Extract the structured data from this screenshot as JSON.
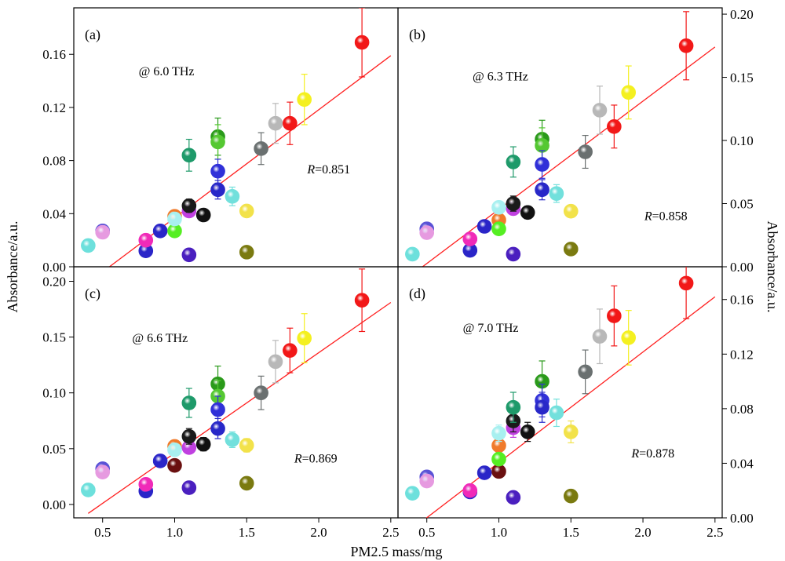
{
  "figure": {
    "xlabel": "PM2.5 mass/mg",
    "ylabel_left": "Absorbance/a.u.",
    "ylabel_right": "Absorbance/a.u."
  },
  "chart_data": [
    {
      "type": "scatter",
      "panel": "(a)",
      "frequency_label": "@ 6.0 THz",
      "r_label": "R",
      "r_value": "=0.851",
      "xlim": [
        0.3,
        2.55
      ],
      "ylim": [
        0,
        0.195
      ],
      "yticks": [
        0.0,
        0.04,
        0.08,
        0.12,
        0.16
      ],
      "ytick_labels": [
        "0.00",
        "0.04",
        "0.08",
        "0.12",
        "0.16"
      ],
      "fit_line": {
        "color": "#ff2020",
        "x": [
          0.4,
          2.5
        ],
        "y": [
          -0.012,
          0.159
        ]
      },
      "points": [
        {
          "x": 0.4,
          "y": 0.016,
          "err": 0.002,
          "color": "#6de0dc"
        },
        {
          "x": 0.5,
          "y": 0.027,
          "err": 0.003,
          "color": "#5a52d6"
        },
        {
          "x": 0.5,
          "y": 0.026,
          "err": 0.003,
          "color": "#e69ae0"
        },
        {
          "x": 0.8,
          "y": 0.012,
          "err": 0.002,
          "color": "#2a25c8"
        },
        {
          "x": 0.8,
          "y": 0.02,
          "err": 0.003,
          "color": "#f02ab8"
        },
        {
          "x": 0.9,
          "y": 0.027,
          "err": 0.003,
          "color": "#2a25c8"
        },
        {
          "x": 1.0,
          "y": 0.038,
          "err": 0.004,
          "color": "#f07a2a"
        },
        {
          "x": 1.0,
          "y": 0.027,
          "err": 0.003,
          "color": "#55ee22"
        },
        {
          "x": 1.0,
          "y": 0.036,
          "err": 0.004,
          "color": "#a8f0f0"
        },
        {
          "x": 1.1,
          "y": 0.042,
          "err": 0.004,
          "color": "#c040e0"
        },
        {
          "x": 1.1,
          "y": 0.046,
          "err": 0.005,
          "color": "#1a1a1a"
        },
        {
          "x": 1.1,
          "y": 0.009,
          "err": 0.002,
          "color": "#4a1fbf"
        },
        {
          "x": 1.1,
          "y": 0.084,
          "err": 0.012,
          "color": "#1e9a6a"
        },
        {
          "x": 1.2,
          "y": 0.039,
          "err": 0.004,
          "color": "#111111"
        },
        {
          "x": 1.3,
          "y": 0.098,
          "err": 0.014,
          "color": "#2a9a1a"
        },
        {
          "x": 1.3,
          "y": 0.094,
          "err": 0.013,
          "color": "#55c832"
        },
        {
          "x": 1.3,
          "y": 0.072,
          "err": 0.009,
          "color": "#3030d8"
        },
        {
          "x": 1.3,
          "y": 0.058,
          "err": 0.007,
          "color": "#2828c8"
        },
        {
          "x": 1.4,
          "y": 0.053,
          "err": 0.007,
          "color": "#72e0dc"
        },
        {
          "x": 1.5,
          "y": 0.042,
          "err": 0.004,
          "color": "#f2e24a"
        },
        {
          "x": 1.5,
          "y": 0.011,
          "err": 0.002,
          "color": "#7a7a10"
        },
        {
          "x": 1.6,
          "y": 0.089,
          "err": 0.012,
          "color": "#6a7070"
        },
        {
          "x": 1.7,
          "y": 0.108,
          "err": 0.015,
          "color": "#b8b8b8"
        },
        {
          "x": 1.8,
          "y": 0.108,
          "err": 0.016,
          "color": "#f21818"
        },
        {
          "x": 1.9,
          "y": 0.126,
          "err": 0.019,
          "color": "#f4f020"
        },
        {
          "x": 2.3,
          "y": 0.169,
          "err": 0.026,
          "color": "#f21818"
        }
      ]
    },
    {
      "type": "scatter",
      "panel": "(b)",
      "frequency_label": "@ 6.3 THz",
      "r_label": "R",
      "r_value": "=0.858",
      "xlim": [
        0.3,
        2.55
      ],
      "ylim": [
        0,
        0.205
      ],
      "yticks": [
        0.0,
        0.05,
        0.1,
        0.15,
        0.2
      ],
      "ytick_labels": [
        "0.00",
        "0.05",
        "0.10",
        "0.15",
        "0.20"
      ],
      "fit_line": {
        "color": "#ff2020",
        "x": [
          0.4,
          2.5
        ],
        "y": [
          -0.006,
          0.174
        ]
      },
      "points": [
        {
          "x": 0.4,
          "y": 0.01,
          "err": 0.002,
          "color": "#6de0dc"
        },
        {
          "x": 0.5,
          "y": 0.03,
          "err": 0.003,
          "color": "#5a52d6"
        },
        {
          "x": 0.5,
          "y": 0.027,
          "err": 0.003,
          "color": "#e69ae0"
        },
        {
          "x": 0.8,
          "y": 0.013,
          "err": 0.002,
          "color": "#2a25c8"
        },
        {
          "x": 0.8,
          "y": 0.022,
          "err": 0.003,
          "color": "#f02ab8"
        },
        {
          "x": 0.9,
          "y": 0.032,
          "err": 0.003,
          "color": "#2a25c8"
        },
        {
          "x": 1.0,
          "y": 0.037,
          "err": 0.004,
          "color": "#f07a2a"
        },
        {
          "x": 1.0,
          "y": 0.03,
          "err": 0.003,
          "color": "#55ee22"
        },
        {
          "x": 1.0,
          "y": 0.047,
          "err": 0.005,
          "color": "#a8f0f0"
        },
        {
          "x": 1.1,
          "y": 0.046,
          "err": 0.005,
          "color": "#c040e0"
        },
        {
          "x": 1.1,
          "y": 0.05,
          "err": 0.006,
          "color": "#1a1a1a"
        },
        {
          "x": 1.1,
          "y": 0.01,
          "err": 0.002,
          "color": "#4a1fbf"
        },
        {
          "x": 1.1,
          "y": 0.083,
          "err": 0.012,
          "color": "#1e9a6a"
        },
        {
          "x": 1.2,
          "y": 0.043,
          "err": 0.005,
          "color": "#111111"
        },
        {
          "x": 1.3,
          "y": 0.101,
          "err": 0.015,
          "color": "#2a9a1a"
        },
        {
          "x": 1.3,
          "y": 0.096,
          "err": 0.014,
          "color": "#55c832"
        },
        {
          "x": 1.3,
          "y": 0.081,
          "err": 0.011,
          "color": "#3030d8"
        },
        {
          "x": 1.3,
          "y": 0.061,
          "err": 0.008,
          "color": "#2828c8"
        },
        {
          "x": 1.4,
          "y": 0.058,
          "err": 0.007,
          "color": "#72e0dc"
        },
        {
          "x": 1.5,
          "y": 0.044,
          "err": 0.004,
          "color": "#f2e24a"
        },
        {
          "x": 1.5,
          "y": 0.014,
          "err": 0.002,
          "color": "#7a7a10"
        },
        {
          "x": 1.6,
          "y": 0.091,
          "err": 0.013,
          "color": "#6a7070"
        },
        {
          "x": 1.7,
          "y": 0.124,
          "err": 0.019,
          "color": "#b8b8b8"
        },
        {
          "x": 1.8,
          "y": 0.111,
          "err": 0.017,
          "color": "#f21818"
        },
        {
          "x": 1.9,
          "y": 0.138,
          "err": 0.021,
          "color": "#f4f020"
        },
        {
          "x": 2.3,
          "y": 0.175,
          "err": 0.027,
          "color": "#f21818"
        }
      ]
    },
    {
      "type": "scatter",
      "panel": "(c)",
      "frequency_label": "@ 6.6 THz",
      "r_label": "R",
      "r_value": "=0.869",
      "xlim": [
        0.3,
        2.55
      ],
      "ylim": [
        -0.012,
        0.213
      ],
      "yticks": [
        0.0,
        0.05,
        0.1,
        0.15,
        0.2
      ],
      "ytick_labels": [
        "0.00",
        "0.05",
        "0.10",
        "0.15",
        "0.20"
      ],
      "fit_line": {
        "color": "#ff2020",
        "x": [
          0.4,
          2.5
        ],
        "y": [
          -0.008,
          0.181
        ]
      },
      "points": [
        {
          "x": 0.4,
          "y": 0.013,
          "err": 0.002,
          "color": "#6de0dc"
        },
        {
          "x": 0.5,
          "y": 0.032,
          "err": 0.003,
          "color": "#5a52d6"
        },
        {
          "x": 0.5,
          "y": 0.029,
          "err": 0.003,
          "color": "#e69ae0"
        },
        {
          "x": 0.8,
          "y": 0.012,
          "err": 0.002,
          "color": "#2a25c8"
        },
        {
          "x": 0.8,
          "y": 0.018,
          "err": 0.003,
          "color": "#f02ab8"
        },
        {
          "x": 0.9,
          "y": 0.039,
          "err": 0.004,
          "color": "#2a25c8"
        },
        {
          "x": 1.0,
          "y": 0.052,
          "err": 0.005,
          "color": "#f07a2a"
        },
        {
          "x": 1.0,
          "y": 0.035,
          "err": 0.004,
          "color": "#6a1010"
        },
        {
          "x": 1.0,
          "y": 0.049,
          "err": 0.005,
          "color": "#a8f0f0"
        },
        {
          "x": 1.1,
          "y": 0.051,
          "err": 0.005,
          "color": "#c040e0"
        },
        {
          "x": 1.1,
          "y": 0.061,
          "err": 0.007,
          "color": "#1a1a1a"
        },
        {
          "x": 1.1,
          "y": 0.015,
          "err": 0.002,
          "color": "#4a1fbf"
        },
        {
          "x": 1.1,
          "y": 0.091,
          "err": 0.013,
          "color": "#1e9a6a"
        },
        {
          "x": 1.2,
          "y": 0.054,
          "err": 0.006,
          "color": "#111111"
        },
        {
          "x": 1.3,
          "y": 0.108,
          "err": 0.016,
          "color": "#2a9a1a"
        },
        {
          "x": 1.3,
          "y": 0.097,
          "err": 0.014,
          "color": "#55c832"
        },
        {
          "x": 1.3,
          "y": 0.085,
          "err": 0.012,
          "color": "#3030d8"
        },
        {
          "x": 1.3,
          "y": 0.068,
          "err": 0.009,
          "color": "#2828c8"
        },
        {
          "x": 1.4,
          "y": 0.058,
          "err": 0.007,
          "color": "#72e0dc"
        },
        {
          "x": 1.5,
          "y": 0.053,
          "err": 0.006,
          "color": "#f2e24a"
        },
        {
          "x": 1.5,
          "y": 0.019,
          "err": 0.002,
          "color": "#7a7a10"
        },
        {
          "x": 1.6,
          "y": 0.1,
          "err": 0.015,
          "color": "#6a7070"
        },
        {
          "x": 1.7,
          "y": 0.128,
          "err": 0.019,
          "color": "#b8b8b8"
        },
        {
          "x": 1.8,
          "y": 0.138,
          "err": 0.02,
          "color": "#f21818"
        },
        {
          "x": 1.9,
          "y": 0.149,
          "err": 0.022,
          "color": "#f4f020"
        },
        {
          "x": 2.3,
          "y": 0.183,
          "err": 0.028,
          "color": "#f21818"
        }
      ]
    },
    {
      "type": "scatter",
      "panel": "(d)",
      "frequency_label": "@ 7.0 THz",
      "r_label": "R",
      "r_value": "=0.878",
      "xlim": [
        0.3,
        2.55
      ],
      "ylim": [
        0,
        0.184
      ],
      "yticks": [
        0.0,
        0.04,
        0.08,
        0.12,
        0.16
      ],
      "ytick_labels": [
        "0.00",
        "0.04",
        "0.08",
        "0.12",
        "0.16"
      ],
      "fit_line": {
        "color": "#ff2020",
        "x": [
          0.4,
          2.5
        ],
        "y": [
          -0.008,
          0.162
        ]
      },
      "points": [
        {
          "x": 0.4,
          "y": 0.018,
          "err": 0.002,
          "color": "#6de0dc"
        },
        {
          "x": 0.5,
          "y": 0.03,
          "err": 0.003,
          "color": "#5a52d6"
        },
        {
          "x": 0.5,
          "y": 0.027,
          "err": 0.003,
          "color": "#e69ae0"
        },
        {
          "x": 0.8,
          "y": 0.019,
          "err": 0.002,
          "color": "#2a25c8"
        },
        {
          "x": 0.8,
          "y": 0.02,
          "err": 0.003,
          "color": "#f02ab8"
        },
        {
          "x": 0.9,
          "y": 0.033,
          "err": 0.003,
          "color": "#2a25c8"
        },
        {
          "x": 1.0,
          "y": 0.053,
          "err": 0.005,
          "color": "#f07a2a"
        },
        {
          "x": 1.0,
          "y": 0.034,
          "err": 0.004,
          "color": "#6a1010"
        },
        {
          "x": 1.0,
          "y": 0.043,
          "err": 0.004,
          "color": "#55ee22"
        },
        {
          "x": 1.0,
          "y": 0.062,
          "err": 0.006,
          "color": "#a8f0f0"
        },
        {
          "x": 1.1,
          "y": 0.066,
          "err": 0.007,
          "color": "#c040e0"
        },
        {
          "x": 1.1,
          "y": 0.071,
          "err": 0.008,
          "color": "#1a1a1a"
        },
        {
          "x": 1.1,
          "y": 0.015,
          "err": 0.002,
          "color": "#4a1fbf"
        },
        {
          "x": 1.1,
          "y": 0.081,
          "err": 0.011,
          "color": "#1e9a6a"
        },
        {
          "x": 1.2,
          "y": 0.063,
          "err": 0.007,
          "color": "#111111"
        },
        {
          "x": 1.3,
          "y": 0.1,
          "err": 0.015,
          "color": "#2a9a1a"
        },
        {
          "x": 1.3,
          "y": 0.086,
          "err": 0.012,
          "color": "#3030d8"
        },
        {
          "x": 1.3,
          "y": 0.081,
          "err": 0.011,
          "color": "#2828c8"
        },
        {
          "x": 1.4,
          "y": 0.077,
          "err": 0.01,
          "color": "#72e0dc"
        },
        {
          "x": 1.5,
          "y": 0.063,
          "err": 0.008,
          "color": "#f2e24a"
        },
        {
          "x": 1.5,
          "y": 0.016,
          "err": 0.002,
          "color": "#7a7a10"
        },
        {
          "x": 1.6,
          "y": 0.107,
          "err": 0.016,
          "color": "#6a7070"
        },
        {
          "x": 1.7,
          "y": 0.133,
          "err": 0.02,
          "color": "#b8b8b8"
        },
        {
          "x": 1.8,
          "y": 0.148,
          "err": 0.022,
          "color": "#f21818"
        },
        {
          "x": 1.9,
          "y": 0.132,
          "err": 0.02,
          "color": "#f4f020"
        },
        {
          "x": 2.3,
          "y": 0.172,
          "err": 0.026,
          "color": "#f21818"
        }
      ]
    }
  ],
  "x_axis": {
    "ticks": [
      0.5,
      1.0,
      1.5,
      2.0,
      2.5
    ],
    "tick_labels": [
      "0.5",
      "1.0",
      "1.5",
      "2.0",
      "2.5"
    ]
  }
}
